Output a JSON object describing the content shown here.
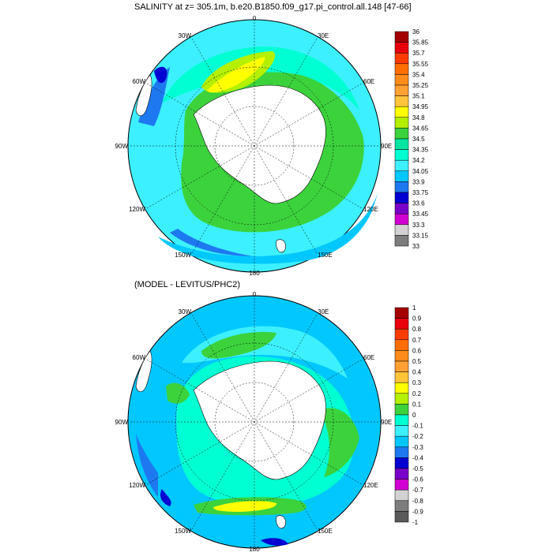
{
  "panels": [
    {
      "title": "SALINITY at z= 305.1m, b.e20.B1850.f09_g17.pi_control.all.148 [47-66]",
      "lon_labels": [
        "0",
        "30E",
        "60E",
        "90E",
        "120E",
        "150E",
        "180",
        "150W",
        "120W",
        "90W",
        "60W",
        "30W"
      ],
      "colorbar": {
        "labels": [
          "36",
          "35.85",
          "35.7",
          "35.55",
          "35.4",
          "35.25",
          "35.1",
          "34.95",
          "34.8",
          "34.65",
          "34.5",
          "34.35",
          "34.2",
          "34.05",
          "33.9",
          "33.75",
          "33.6",
          "33.45",
          "33.3",
          "33.15",
          "33"
        ],
        "colors": [
          "#a50000",
          "#e8000b",
          "#ff3c00",
          "#ff6e00",
          "#ff8c1a",
          "#ffa033",
          "#ffc43a",
          "#ffff00",
          "#b4f000",
          "#3cd23c",
          "#00e6a0",
          "#00ffd2",
          "#3cf0ff",
          "#00c8ff",
          "#1e78f0",
          "#0000d2",
          "#7800c8",
          "#d200d2",
          "#d2d2d2",
          "#7d7d7d"
        ]
      }
    },
    {
      "title": "(MODEL - LEVITUS/PHC2)",
      "lon_labels": [
        "0",
        "30E",
        "60E",
        "90E",
        "120E",
        "150E",
        "180",
        "150W",
        "120W",
        "90W",
        "60W",
        "30W"
      ],
      "colorbar": {
        "labels": [
          "1",
          "0.9",
          "0.8",
          "0.7",
          "0.6",
          "0.5",
          "0.4",
          "0.3",
          "0.2",
          "0.1",
          "0",
          "-0.1",
          "-0.2",
          "-0.3",
          "-0.4",
          "-0.5",
          "-0.6",
          "-0.7",
          "-0.8",
          "-0.9",
          "-1"
        ],
        "colors": [
          "#a50000",
          "#e8000b",
          "#ff3c00",
          "#ff6e00",
          "#ff8c1a",
          "#ffa033",
          "#ffc43a",
          "#ffff00",
          "#b4f000",
          "#3cd23c",
          "#00ffd2",
          "#3cf0ff",
          "#00c8ff",
          "#1e78f0",
          "#0000d2",
          "#7800c8",
          "#d200d2",
          "#d2d2d2",
          "#7d7d7d",
          "#5a5a5a"
        ]
      }
    }
  ]
}
